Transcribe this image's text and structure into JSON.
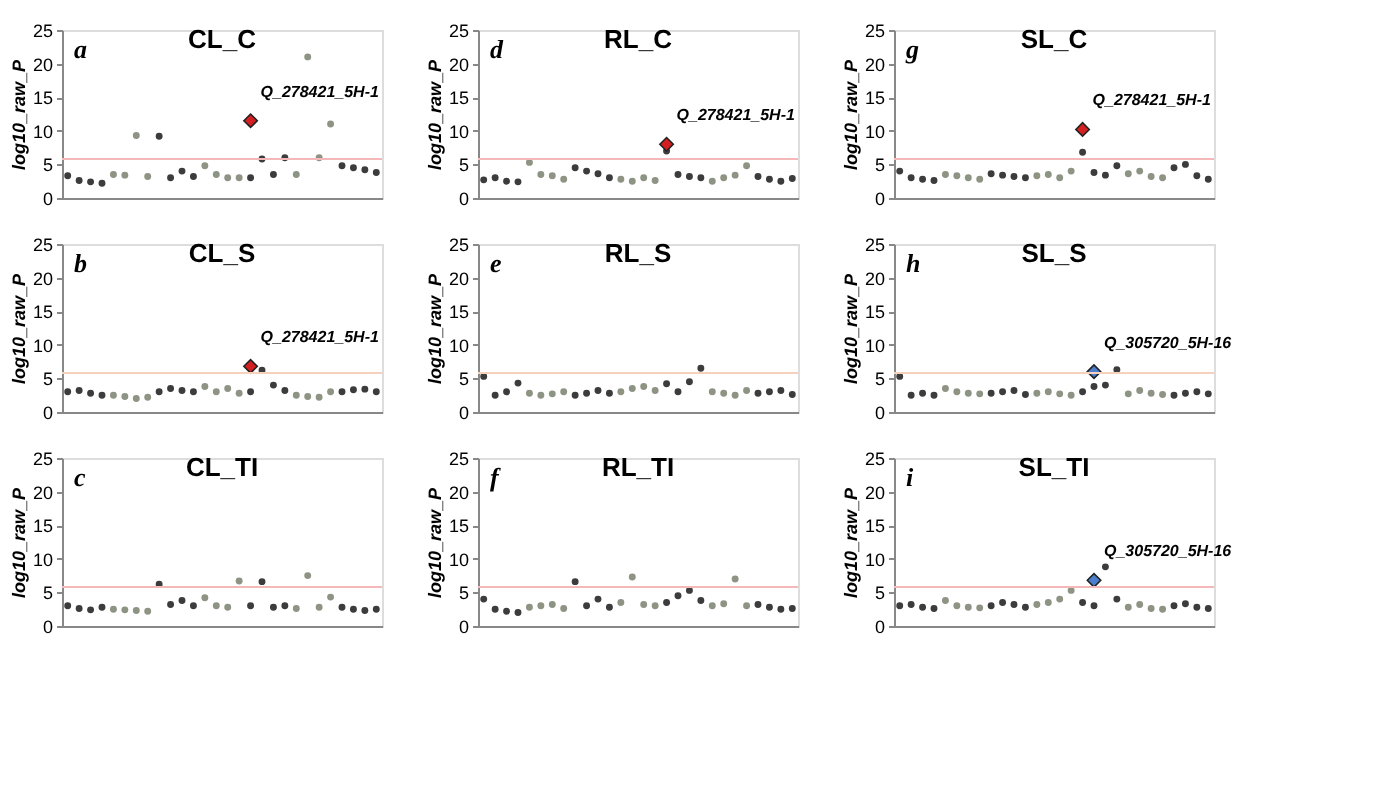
{
  "chart_data": [
    {
      "type": "scatter",
      "title": "CL_C",
      "ylabel": "log10_raw_P",
      "categories": [
        null,
        null,
        null,
        null,
        null,
        null,
        null,
        null,
        null,
        null,
        null,
        null,
        null,
        null,
        null,
        null,
        null,
        null,
        null,
        null,
        null,
        null,
        null,
        null,
        null,
        null,
        null,
        null
      ],
      "ylim": [
        0,
        25
      ],
      "yticks": [
        0,
        5,
        10,
        15,
        20,
        25
      ],
      "tick_labels": "y",
      "marker": "circle",
      "ref_lines": [
        {
          "axis": "y",
          "value": 5.8,
          "color": "#f4b8b8"
        }
      ],
      "annotations": [
        "a",
        {
          "text": "Q_278421_5H-1",
          "y": 11.5
        }
      ],
      "series": [
        {
          "colors": [
            "#3c3c3c",
            "#3c3c3c",
            "#3c3c3c",
            "#3c3c3c",
            "#8e9484",
            "#8e9484",
            "#8e9484",
            "#8e9484",
            "#3c3c3c",
            "#3c3c3c",
            "#3c3c3c",
            "#3c3c3c",
            "#8e9484",
            "#8e9484",
            "#8e9484",
            "#8e9484",
            "#3c3c3c",
            "#3c3c3c",
            "#3c3c3c",
            "#3c3c3c",
            "#8e9484",
            "#8e9484",
            "#8e9484",
            "#8e9484",
            "#3c3c3c",
            "#3c3c3c",
            "#3c3c3c",
            "#3c3c3c"
          ],
          "values": [
            3.3,
            2.6,
            2.4,
            2.2,
            3.5,
            3.4,
            9.3,
            3.2,
            9.2,
            3.0,
            4.0,
            3.2,
            4.8,
            3.5,
            3.0,
            3.0,
            3.0,
            5.8,
            3.5,
            6.0,
            3.5,
            21,
            6.0,
            11.0,
            4.8,
            4.5,
            4.2,
            3.8
          ]
        },
        {
          "color": "#d42020",
          "marker": "diamond",
          "values": [
            null,
            null,
            null,
            null,
            null,
            null,
            null,
            null,
            null,
            null,
            null,
            null,
            null,
            null,
            null,
            null,
            11.5,
            null,
            null,
            null,
            null,
            null,
            null,
            null,
            null,
            null,
            null,
            null
          ]
        }
      ]
    },
    {
      "type": "scatter",
      "title": "RL_C",
      "ylabel": "log10_raw_P",
      "categories": [
        null,
        null,
        null,
        null,
        null,
        null,
        null,
        null,
        null,
        null,
        null,
        null,
        null,
        null,
        null,
        null,
        null,
        null,
        null,
        null,
        null,
        null,
        null,
        null,
        null,
        null,
        null,
        null
      ],
      "ylim": [
        0,
        25
      ],
      "yticks": [
        0,
        5,
        10,
        15,
        20,
        25
      ],
      "tick_labels": "y",
      "marker": "circle",
      "ref_lines": [
        {
          "axis": "y",
          "value": 5.8,
          "color": "#f4b8b8"
        }
      ],
      "annotations": [
        "d",
        "Q_278421_5H-1"
      ],
      "series": [
        {
          "colors": [
            "#3c3c3c",
            "#3c3c3c",
            "#3c3c3c",
            "#3c3c3c",
            "#8e9484",
            "#8e9484",
            "#8e9484",
            "#8e9484",
            "#3c3c3c",
            "#3c3c3c",
            "#3c3c3c",
            "#3c3c3c",
            "#8e9484",
            "#8e9484",
            "#8e9484",
            "#8e9484",
            "#3c3c3c",
            "#3c3c3c",
            "#3c3c3c",
            "#3c3c3c",
            "#8e9484",
            "#8e9484",
            "#8e9484",
            "#8e9484",
            "#3c3c3c",
            "#3c3c3c",
            "#3c3c3c",
            "#3c3c3c"
          ],
          "values": [
            2.7,
            3.0,
            2.5,
            2.4,
            5.3,
            3.5,
            3.3,
            2.8,
            4.5,
            4.0,
            3.6,
            3.0,
            2.8,
            2.5,
            3.0,
            2.6,
            7.0,
            3.5,
            3.2,
            3.0,
            2.5,
            3.0,
            3.4,
            4.8,
            3.2,
            2.8,
            2.5,
            2.9
          ]
        },
        {
          "color": "#d42020",
          "marker": "diamond",
          "values": [
            null,
            null,
            null,
            null,
            null,
            null,
            null,
            null,
            null,
            null,
            null,
            null,
            null,
            null,
            null,
            null,
            8.0,
            null,
            null,
            null,
            null,
            null,
            null,
            null,
            null,
            null,
            null,
            null
          ]
        }
      ]
    },
    {
      "type": "scatter",
      "title": "SL_C",
      "ylabel": "log10_raw_P",
      "categories": [
        null,
        null,
        null,
        null,
        null,
        null,
        null,
        null,
        null,
        null,
        null,
        null,
        null,
        null,
        null,
        null,
        null,
        null,
        null,
        null,
        null,
        null,
        null,
        null,
        null,
        null,
        null,
        null
      ],
      "ylim": [
        0,
        25
      ],
      "yticks": [
        0,
        5,
        10,
        15,
        20,
        25
      ],
      "tick_labels": "y",
      "marker": "circle",
      "ref_lines": [
        {
          "axis": "y",
          "value": 5.8,
          "color": "#f4b8b8"
        }
      ],
      "annotations": [
        "g",
        "Q_278421_5H-1"
      ],
      "series": [
        {
          "colors": [
            "#3c3c3c",
            "#3c3c3c",
            "#3c3c3c",
            "#3c3c3c",
            "#8e9484",
            "#8e9484",
            "#8e9484",
            "#8e9484",
            "#3c3c3c",
            "#3c3c3c",
            "#3c3c3c",
            "#3c3c3c",
            "#8e9484",
            "#8e9484",
            "#8e9484",
            "#8e9484",
            "#3c3c3c",
            "#3c3c3c",
            "#3c3c3c",
            "#3c3c3c",
            "#8e9484",
            "#8e9484",
            "#8e9484",
            "#8e9484",
            "#3c3c3c",
            "#3c3c3c",
            "#3c3c3c",
            "#3c3c3c"
          ],
          "values": [
            4.0,
            3.0,
            2.8,
            2.6,
            3.5,
            3.3,
            3.0,
            2.8,
            3.6,
            3.4,
            3.2,
            3.0,
            3.3,
            3.5,
            3.0,
            4.0,
            6.8,
            3.8,
            3.4,
            4.8,
            3.6,
            4.0,
            3.2,
            3.0,
            4.5,
            5.0,
            3.3,
            2.8
          ]
        },
        {
          "color": "#d42020",
          "marker": "diamond",
          "values": [
            null,
            null,
            null,
            null,
            null,
            null,
            null,
            null,
            null,
            null,
            null,
            null,
            null,
            null,
            null,
            null,
            10.2,
            null,
            null,
            null,
            null,
            null,
            null,
            null,
            null,
            null,
            null,
            null
          ]
        }
      ]
    },
    {
      "type": "scatter",
      "title": "CL_S",
      "ylabel": "log10_raw_P",
      "categories": [
        null,
        null,
        null,
        null,
        null,
        null,
        null,
        null,
        null,
        null,
        null,
        null,
        null,
        null,
        null,
        null,
        null,
        null,
        null,
        null,
        null,
        null,
        null,
        null,
        null,
        null,
        null,
        null
      ],
      "ylim": [
        0,
        25
      ],
      "yticks": [
        0,
        5,
        10,
        15,
        20,
        25
      ],
      "tick_labels": "y",
      "marker": "circle",
      "ref_lines": [
        {
          "axis": "y",
          "value": 5.8,
          "color": "#f6d2bc"
        }
      ],
      "annotations": [
        "b",
        {
          "text": "Q_278421_5H-1",
          "y": 6.8
        }
      ],
      "series": [
        {
          "colors": [
            "#3c3c3c",
            "#3c3c3c",
            "#3c3c3c",
            "#3c3c3c",
            "#8e9484",
            "#8e9484",
            "#8e9484",
            "#8e9484",
            "#3c3c3c",
            "#3c3c3c",
            "#3c3c3c",
            "#3c3c3c",
            "#8e9484",
            "#8e9484",
            "#8e9484",
            "#8e9484",
            "#3c3c3c",
            "#3c3c3c",
            "#3c3c3c",
            "#3c3c3c",
            "#8e9484",
            "#8e9484",
            "#8e9484",
            "#8e9484",
            "#3c3c3c",
            "#3c3c3c",
            "#3c3c3c",
            "#3c3c3c"
          ],
          "values": [
            3.0,
            3.2,
            2.8,
            2.5,
            2.5,
            2.3,
            2.0,
            2.2,
            3.0,
            3.5,
            3.2,
            3.0,
            3.8,
            3.0,
            3.5,
            2.8,
            3.0,
            6.2,
            4.0,
            3.2,
            2.5,
            2.3,
            2.2,
            3.0,
            3.0,
            3.3,
            3.4,
            3.0
          ]
        },
        {
          "color": "#d42020",
          "marker": "diamond",
          "values": [
            null,
            null,
            null,
            null,
            null,
            null,
            null,
            null,
            null,
            null,
            null,
            null,
            null,
            null,
            null,
            null,
            6.8,
            null,
            null,
            null,
            null,
            null,
            null,
            null,
            null,
            null,
            null,
            null
          ]
        }
      ]
    },
    {
      "type": "scatter",
      "title": "RL_S",
      "ylabel": "log10_raw_P",
      "categories": [
        null,
        null,
        null,
        null,
        null,
        null,
        null,
        null,
        null,
        null,
        null,
        null,
        null,
        null,
        null,
        null,
        null,
        null,
        null,
        null,
        null,
        null,
        null,
        null,
        null,
        null,
        null,
        null
      ],
      "ylim": [
        0,
        25
      ],
      "yticks": [
        0,
        5,
        10,
        15,
        20,
        25
      ],
      "tick_labels": "y",
      "marker": "circle",
      "ref_lines": [
        {
          "axis": "y",
          "value": 5.8,
          "color": "#f6d2bc"
        }
      ],
      "annotations": [
        "e"
      ],
      "series": [
        {
          "colors": [
            "#3c3c3c",
            "#3c3c3c",
            "#3c3c3c",
            "#3c3c3c",
            "#8e9484",
            "#8e9484",
            "#8e9484",
            "#8e9484",
            "#3c3c3c",
            "#3c3c3c",
            "#3c3c3c",
            "#3c3c3c",
            "#8e9484",
            "#8e9484",
            "#8e9484",
            "#8e9484",
            "#3c3c3c",
            "#3c3c3c",
            "#3c3c3c",
            "#3c3c3c",
            "#8e9484",
            "#8e9484",
            "#8e9484",
            "#8e9484",
            "#3c3c3c",
            "#3c3c3c",
            "#3c3c3c",
            "#3c3c3c"
          ],
          "values": [
            5.3,
            2.5,
            3.0,
            4.3,
            2.8,
            2.5,
            2.7,
            3.0,
            2.5,
            2.8,
            3.2,
            2.8,
            3.0,
            3.5,
            3.8,
            3.2,
            4.2,
            3.0,
            4.5,
            6.5,
            3.0,
            2.8,
            2.5,
            3.2,
            2.8,
            3.0,
            3.2,
            2.6
          ]
        }
      ]
    },
    {
      "type": "scatter",
      "title": "SL_S",
      "ylabel": "log10_raw_P",
      "categories": [
        null,
        null,
        null,
        null,
        null,
        null,
        null,
        null,
        null,
        null,
        null,
        null,
        null,
        null,
        null,
        null,
        null,
        null,
        null,
        null,
        null,
        null,
        null,
        null,
        null,
        null,
        null,
        null
      ],
      "ylim": [
        0,
        25
      ],
      "yticks": [
        0,
        5,
        10,
        15,
        20,
        25
      ],
      "tick_labels": "y",
      "marker": "circle",
      "ref_lines": [
        {
          "axis": "y",
          "value": 5.8,
          "color": "#f6d2bc"
        }
      ],
      "annotations": [
        "h",
        {
          "text": "Q_305720_5H-16",
          "y": 6.0
        }
      ],
      "series": [
        {
          "colors": [
            "#3c3c3c",
            "#3c3c3c",
            "#3c3c3c",
            "#3c3c3c",
            "#8e9484",
            "#8e9484",
            "#8e9484",
            "#8e9484",
            "#3c3c3c",
            "#3c3c3c",
            "#3c3c3c",
            "#3c3c3c",
            "#8e9484",
            "#8e9484",
            "#8e9484",
            "#8e9484",
            "#3c3c3c",
            "#3c3c3c",
            "#3c3c3c",
            "#3c3c3c",
            "#8e9484",
            "#8e9484",
            "#8e9484",
            "#8e9484",
            "#3c3c3c",
            "#3c3c3c",
            "#3c3c3c",
            "#3c3c3c"
          ],
          "values": [
            5.3,
            2.5,
            2.8,
            2.5,
            3.5,
            3.0,
            2.8,
            2.7,
            2.8,
            3.0,
            3.2,
            2.6,
            2.8,
            3.0,
            2.7,
            2.5,
            3.0,
            3.8,
            4.0,
            6.3,
            2.7,
            3.2,
            2.8,
            2.6,
            2.5,
            2.8,
            3.0,
            2.7
          ]
        },
        {
          "color": "#4a7fd0",
          "marker": "diamond",
          "values": [
            null,
            null,
            null,
            null,
            null,
            null,
            null,
            null,
            null,
            null,
            null,
            null,
            null,
            null,
            null,
            null,
            null,
            6.0,
            null,
            null,
            null,
            null,
            null,
            null,
            null,
            null,
            null,
            null
          ]
        }
      ]
    },
    {
      "type": "scatter",
      "title": "CL_TI",
      "ylabel": "log10_raw_P",
      "categories": [
        null,
        null,
        null,
        null,
        null,
        null,
        null,
        null,
        null,
        null,
        null,
        null,
        null,
        null,
        null,
        null,
        null,
        null,
        null,
        null,
        null,
        null,
        null,
        null,
        null,
        null,
        null,
        null
      ],
      "ylim": [
        0,
        25
      ],
      "yticks": [
        0,
        5,
        10,
        15,
        20,
        25
      ],
      "tick_labels": "y",
      "marker": "circle",
      "ref_lines": [
        {
          "axis": "y",
          "value": 5.8,
          "color": "#f4b8b8"
        }
      ],
      "annotations": [
        "c"
      ],
      "series": [
        {
          "colors": [
            "#3c3c3c",
            "#3c3c3c",
            "#3c3c3c",
            "#3c3c3c",
            "#8e9484",
            "#8e9484",
            "#8e9484",
            "#8e9484",
            "#3c3c3c",
            "#3c3c3c",
            "#3c3c3c",
            "#3c3c3c",
            "#8e9484",
            "#8e9484",
            "#8e9484",
            "#8e9484",
            "#3c3c3c",
            "#3c3c3c",
            "#3c3c3c",
            "#3c3c3c",
            "#8e9484",
            "#8e9484",
            "#8e9484",
            "#8e9484",
            "#3c3c3c",
            "#3c3c3c",
            "#3c3c3c",
            "#3c3c3c"
          ],
          "values": [
            3.0,
            2.6,
            2.4,
            2.8,
            2.5,
            2.4,
            2.3,
            2.2,
            6.2,
            3.2,
            3.8,
            3.0,
            4.2,
            3.0,
            2.8,
            6.7,
            3.0,
            6.6,
            2.8,
            3.0,
            2.6,
            7.5,
            2.8,
            4.3,
            2.8,
            2.5,
            2.3,
            2.5
          ]
        }
      ]
    },
    {
      "type": "scatter",
      "title": "RL_TI",
      "ylabel": "log10_raw_P",
      "categories": [
        null,
        null,
        null,
        null,
        null,
        null,
        null,
        null,
        null,
        null,
        null,
        null,
        null,
        null,
        null,
        null,
        null,
        null,
        null,
        null,
        null,
        null,
        null,
        null,
        null,
        null,
        null,
        null
      ],
      "ylim": [
        0,
        25
      ],
      "yticks": [
        0,
        5,
        10,
        15,
        20,
        25
      ],
      "tick_labels": "y",
      "marker": "circle",
      "ref_lines": [
        {
          "axis": "y",
          "value": 5.8,
          "color": "#f4b8b8"
        }
      ],
      "annotations": [
        "f"
      ],
      "series": [
        {
          "colors": [
            "#3c3c3c",
            "#3c3c3c",
            "#3c3c3c",
            "#3c3c3c",
            "#8e9484",
            "#8e9484",
            "#8e9484",
            "#8e9484",
            "#3c3c3c",
            "#3c3c3c",
            "#3c3c3c",
            "#3c3c3c",
            "#8e9484",
            "#8e9484",
            "#8e9484",
            "#8e9484",
            "#3c3c3c",
            "#3c3c3c",
            "#3c3c3c",
            "#3c3c3c",
            "#8e9484",
            "#8e9484",
            "#8e9484",
            "#8e9484",
            "#3c3c3c",
            "#3c3c3c",
            "#3c3c3c",
            "#3c3c3c"
          ],
          "values": [
            4.0,
            2.5,
            2.2,
            2.0,
            2.8,
            3.0,
            3.2,
            2.6,
            6.6,
            3.0,
            4.0,
            2.8,
            3.5,
            7.3,
            3.2,
            3.0,
            3.5,
            4.5,
            5.3,
            3.8,
            3.0,
            3.3,
            7.0,
            3.0,
            3.2,
            2.8,
            2.5,
            2.6
          ]
        }
      ]
    },
    {
      "type": "scatter",
      "title": "SL_TI",
      "ylabel": "log10_raw_P",
      "categories": [
        null,
        null,
        null,
        null,
        null,
        null,
        null,
        null,
        null,
        null,
        null,
        null,
        null,
        null,
        null,
        null,
        null,
        null,
        null,
        null,
        null,
        null,
        null,
        null,
        null,
        null,
        null,
        null
      ],
      "ylim": [
        0,
        25
      ],
      "yticks": [
        0,
        5,
        10,
        15,
        20,
        25
      ],
      "tick_labels": "y",
      "marker": "circle",
      "ref_lines": [
        {
          "axis": "y",
          "value": 5.8,
          "color": "#f4b8b8"
        }
      ],
      "annotations": [
        "i",
        {
          "text": "Q_305720_5H-16",
          "y": 6.8
        }
      ],
      "series": [
        {
          "colors": [
            "#3c3c3c",
            "#3c3c3c",
            "#3c3c3c",
            "#3c3c3c",
            "#8e9484",
            "#8e9484",
            "#8e9484",
            "#8e9484",
            "#3c3c3c",
            "#3c3c3c",
            "#3c3c3c",
            "#3c3c3c",
            "#8e9484",
            "#8e9484",
            "#8e9484",
            "#8e9484",
            "#3c3c3c",
            "#3c3c3c",
            "#3c3c3c",
            "#3c3c3c",
            "#8e9484",
            "#8e9484",
            "#8e9484",
            "#8e9484",
            "#3c3c3c",
            "#3c3c3c",
            "#3c3c3c",
            "#3c3c3c"
          ],
          "values": [
            3.0,
            3.2,
            2.8,
            2.6,
            3.8,
            3.0,
            2.8,
            2.7,
            3.0,
            3.5,
            3.2,
            2.8,
            3.2,
            3.5,
            4.0,
            5.3,
            3.5,
            3.0,
            8.8,
            4.0,
            2.8,
            3.2,
            2.6,
            2.5,
            3.0,
            3.3,
            2.8,
            2.6
          ]
        },
        {
          "color": "#4a7fd0",
          "marker": "diamond",
          "values": [
            null,
            null,
            null,
            null,
            null,
            null,
            null,
            null,
            null,
            null,
            null,
            null,
            null,
            null,
            null,
            null,
            null,
            6.8,
            null,
            null,
            null,
            null,
            null,
            null,
            null,
            null,
            null,
            null
          ]
        }
      ]
    }
  ]
}
